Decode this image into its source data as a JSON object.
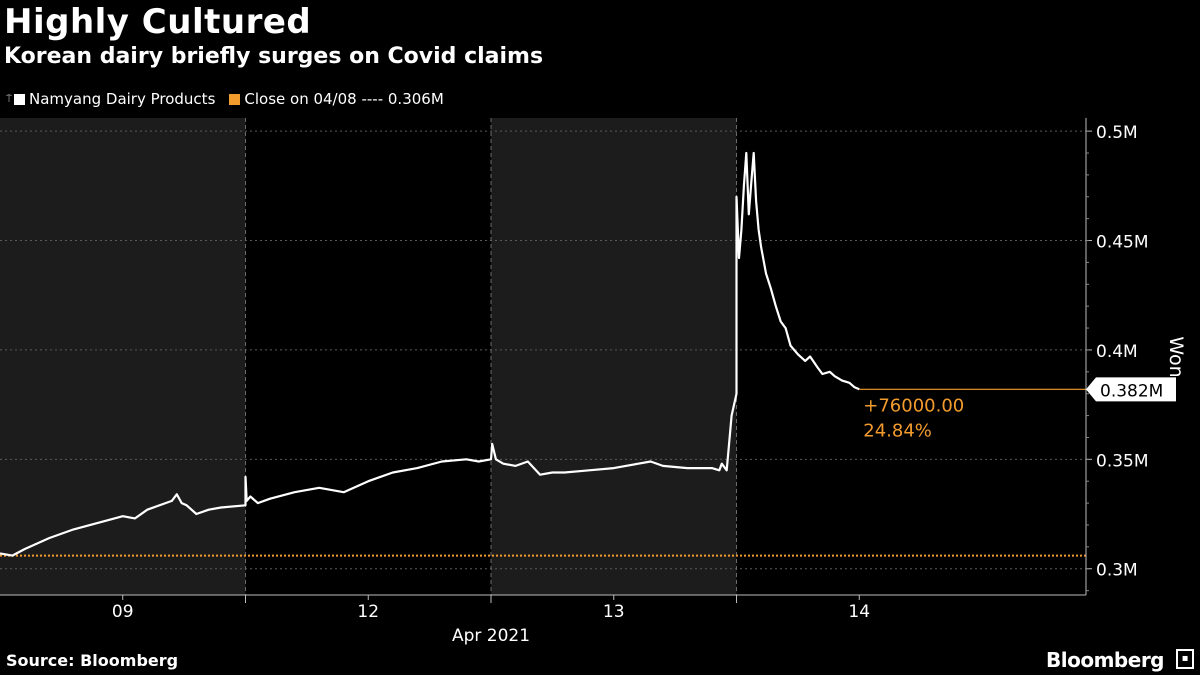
{
  "title": "Highly Cultured",
  "subtitle": "Korean dairy briefly surges on Covid claims",
  "legend": {
    "series_label": "Namyang Dairy Products",
    "series_color": "#ffffff",
    "close_label": "Close on 04/08 ---- 0.306M",
    "close_color": "#f39c2e"
  },
  "source": "Source: Bloomberg",
  "brand": "Bloomberg",
  "brand_icon": "bloomberg-logo-icon",
  "chart_data": {
    "type": "line",
    "title": "Highly Cultured",
    "subtitle": "Korean dairy briefly surges on Covid claims",
    "ylabel": "Won",
    "ylim": [
      0.288,
      0.506
    ],
    "yticks": [
      0.3,
      0.35,
      0.4,
      0.45,
      0.5
    ],
    "ytick_labels": [
      "0.3M",
      "0.35M",
      "0.4M",
      "0.45M",
      "0.5M"
    ],
    "xlim": [
      0,
      4.42
    ],
    "xticks": [
      0.5,
      1.5,
      2.5,
      3.5
    ],
    "xtick_labels": [
      "09",
      "12",
      "13",
      "14"
    ],
    "xlabel": "Apr 2021",
    "shaded_sessions": [
      [
        0,
        1
      ],
      [
        2,
        3
      ]
    ],
    "reference_line": {
      "label": "Close on 04/08",
      "value": 0.306,
      "color": "#f39c2e",
      "style": "dotted"
    },
    "last_value": {
      "value": 0.382,
      "label": "0.382M"
    },
    "annotation": {
      "change": "+76000.00",
      "percent": "24.84%",
      "color": "#f39c2e"
    },
    "series": [
      {
        "name": "Namyang Dairy Products",
        "color": "#ffffff",
        "x": [
          0.0,
          0.05,
          0.1,
          0.2,
          0.3,
          0.4,
          0.5,
          0.55,
          0.6,
          0.7,
          0.72,
          0.74,
          0.76,
          0.8,
          0.85,
          0.9,
          1.0,
          1.0,
          1.005,
          1.02,
          1.05,
          1.1,
          1.2,
          1.3,
          1.4,
          1.5,
          1.6,
          1.7,
          1.8,
          1.9,
          1.95,
          2.0,
          2.005,
          2.02,
          2.05,
          2.1,
          2.15,
          2.2,
          2.25,
          2.3,
          2.4,
          2.5,
          2.6,
          2.65,
          2.7,
          2.8,
          2.9,
          2.93,
          2.94,
          2.96,
          2.98,
          3.0,
          3.0,
          3.01,
          3.02,
          3.03,
          3.04,
          3.05,
          3.06,
          3.07,
          3.08,
          3.09,
          3.1,
          3.12,
          3.14,
          3.16,
          3.18,
          3.2,
          3.22,
          3.25,
          3.28,
          3.3,
          3.33,
          3.35,
          3.38,
          3.4,
          3.43,
          3.46,
          3.48,
          3.5
        ],
        "y": [
          0.307,
          0.306,
          0.309,
          0.314,
          0.318,
          0.321,
          0.324,
          0.323,
          0.327,
          0.331,
          0.334,
          0.33,
          0.329,
          0.325,
          0.327,
          0.328,
          0.329,
          0.342,
          0.331,
          0.333,
          0.33,
          0.332,
          0.335,
          0.337,
          0.335,
          0.34,
          0.344,
          0.346,
          0.349,
          0.35,
          0.349,
          0.35,
          0.357,
          0.35,
          0.348,
          0.347,
          0.349,
          0.343,
          0.344,
          0.344,
          0.345,
          0.346,
          0.348,
          0.349,
          0.347,
          0.346,
          0.346,
          0.345,
          0.348,
          0.345,
          0.37,
          0.38,
          0.47,
          0.442,
          0.455,
          0.475,
          0.49,
          0.462,
          0.476,
          0.49,
          0.468,
          0.455,
          0.447,
          0.435,
          0.428,
          0.42,
          0.413,
          0.41,
          0.402,
          0.398,
          0.395,
          0.397,
          0.392,
          0.389,
          0.39,
          0.388,
          0.386,
          0.385,
          0.383,
          0.382
        ]
      }
    ]
  }
}
